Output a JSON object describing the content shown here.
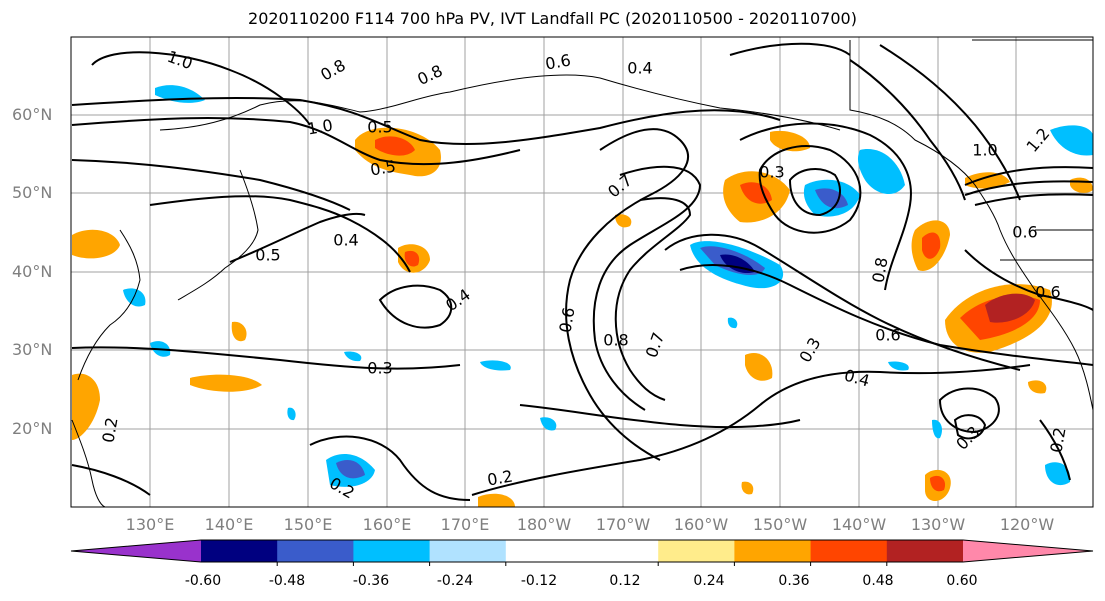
{
  "title": "2020110200 F114 700 hPa PV, IVT Landfall PC (2020110500 - 2020110700)",
  "lat_labels": [
    "60°N",
    "50°N",
    "40°N",
    "30°N",
    "20°N"
  ],
  "lon_labels": [
    "130°E",
    "140°E",
    "150°E",
    "160°E",
    "170°E",
    "180°W",
    "170°W",
    "160°W",
    "150°W",
    "140°W",
    "130°W",
    "120°W"
  ],
  "contour_labels": [
    "1.0",
    "0.8",
    "0.8",
    "0.6",
    "0.4",
    "1.0",
    "0.5",
    "0.5",
    "0.4",
    "0.5",
    "0.4",
    "0.7",
    "0.3",
    "0.8",
    "0.6",
    "0.6",
    "0.8",
    "0.7",
    "0.3",
    "0.3",
    "0.4",
    "0.2",
    "0.2",
    "0.3",
    "1.0",
    "1.2",
    "0.6",
    "0.6",
    "0.2",
    "0.2"
  ],
  "colorbar": {
    "colors": [
      "#9932cc",
      "#000080",
      "#3a5ccb",
      "#00bfff",
      "#b0e2ff",
      "#ffffff",
      "#ffffff",
      "#ffec8b",
      "#ffa500",
      "#ff4500",
      "#b22222",
      "#ff88aa"
    ],
    "tick_labels": [
      "-0.60",
      "-0.48",
      "-0.36",
      "-0.24",
      "-0.12",
      "0.12",
      "0.24",
      "0.36",
      "0.48",
      "0.60"
    ]
  }
}
